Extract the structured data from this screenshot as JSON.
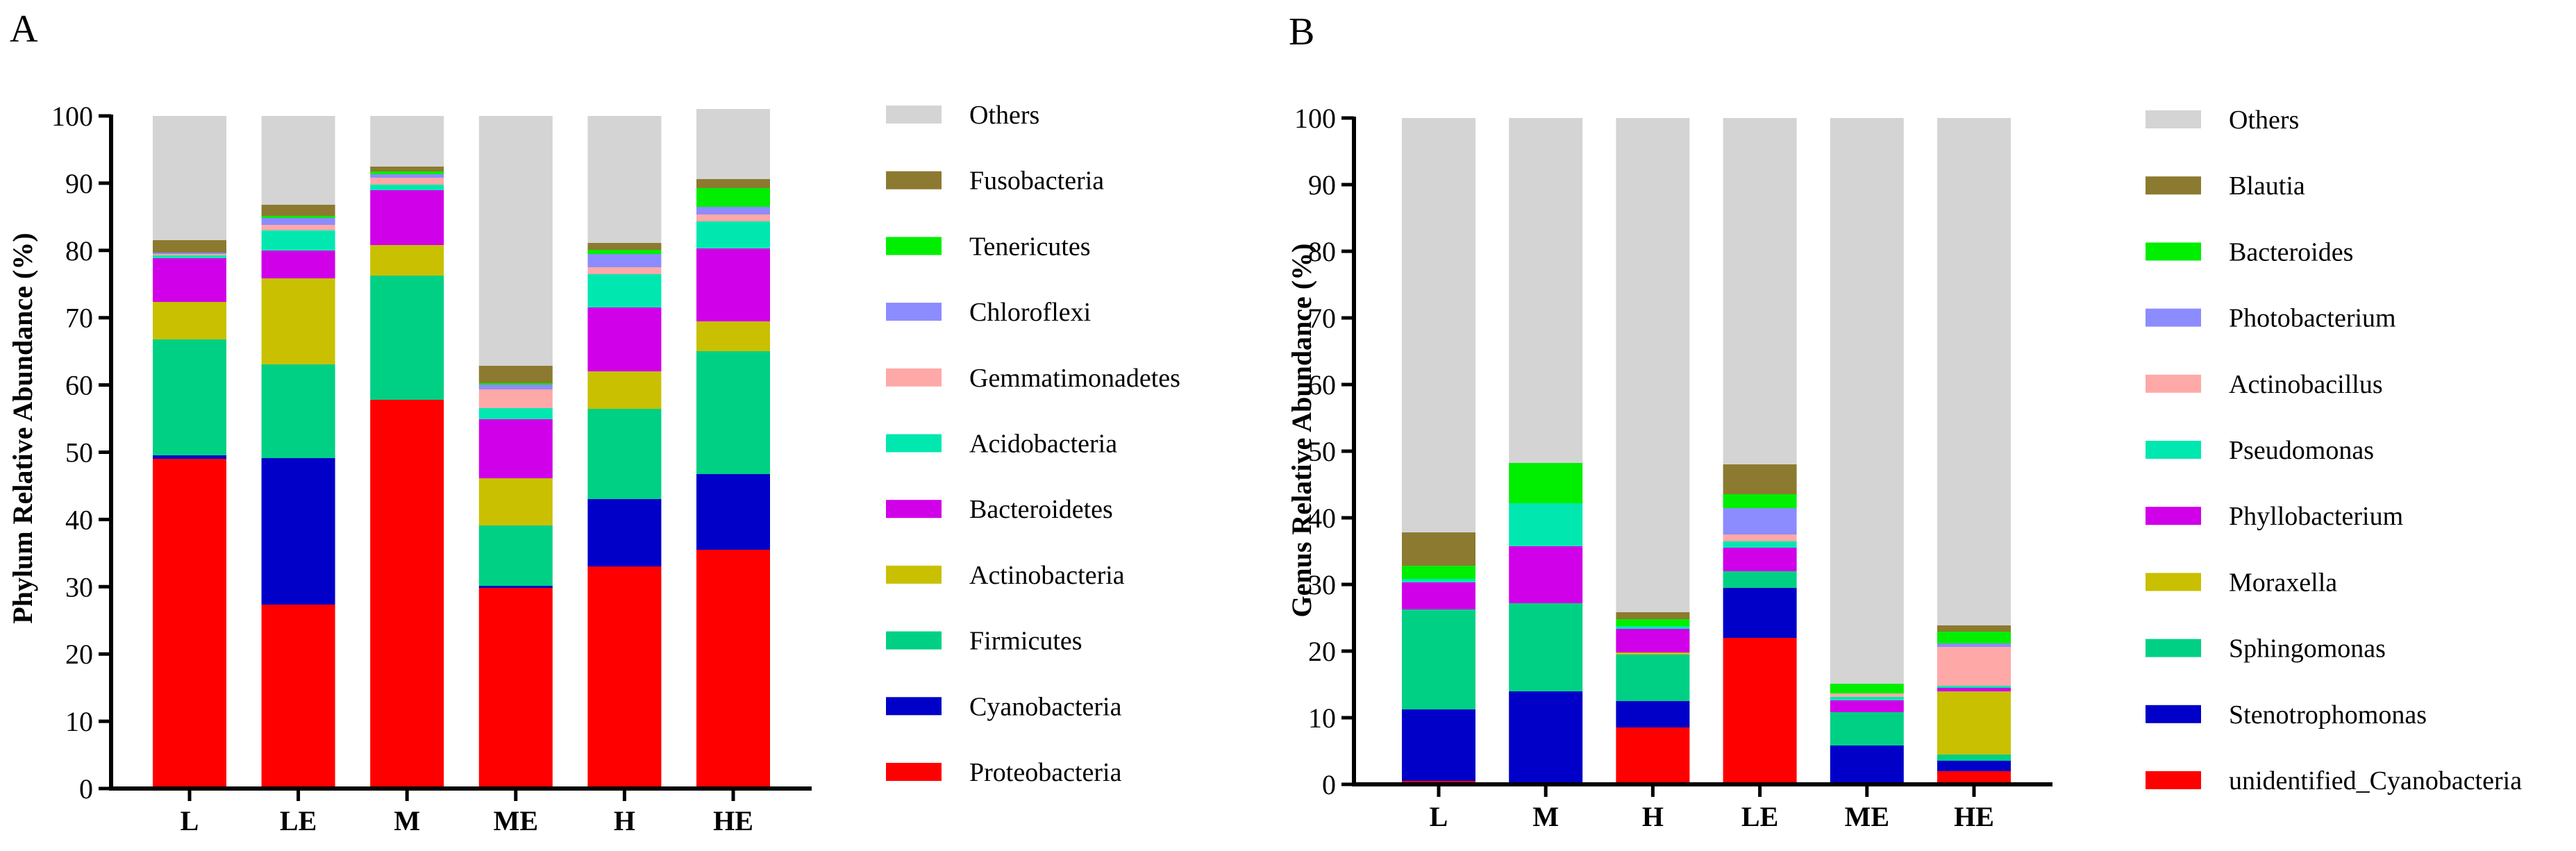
{
  "chart_data": [
    {
      "panel": "A",
      "type": "bar",
      "stacked": true,
      "title": "",
      "xlabel": "",
      "ylabel": "Phylum Relative Abundance (%)",
      "ylim": [
        0,
        100
      ],
      "yticks": [
        "0",
        "10",
        "20",
        "30",
        "40",
        "50",
        "60",
        "70",
        "80",
        "90",
        "100"
      ],
      "grid": false,
      "legend_position": "right",
      "categories": [
        "L",
        "LE",
        "M",
        "ME",
        "H",
        "HE"
      ],
      "series": [
        {
          "name": "Proteobacteria",
          "color": "#ff0000",
          "values": [
            49,
            27.3,
            57.8,
            29.8,
            33,
            35.5
          ]
        },
        {
          "name": "Cyanobacteria",
          "color": "#0000c8",
          "values": [
            0.5,
            21.8,
            0,
            0.3,
            10,
            11.3
          ]
        },
        {
          "name": "Firmicutes",
          "color": "#00d084",
          "values": [
            17.3,
            14,
            18.5,
            9,
            13.5,
            18.2
          ]
        },
        {
          "name": "Actinobacteria",
          "color": "#c8c000",
          "values": [
            5.5,
            12.7,
            4.5,
            7,
            5.5,
            4.5
          ]
        },
        {
          "name": "Bacteroidetes",
          "color": "#d000e8",
          "values": [
            6.5,
            4.2,
            8.2,
            8.8,
            9.5,
            10.8
          ]
        },
        {
          "name": "Acidobacteria",
          "color": "#00e8b0",
          "values": [
            0.5,
            3,
            0.8,
            1.7,
            5,
            4
          ]
        },
        {
          "name": "Gemmatimonadetes",
          "color": "#ffa8a8",
          "values": [
            0.2,
            0.8,
            1,
            2.7,
            1,
            1
          ]
        },
        {
          "name": "Chloroflexi",
          "color": "#8c8cff",
          "values": [
            0.2,
            1,
            0.5,
            0.8,
            2,
            1.2
          ]
        },
        {
          "name": "Tenericutes",
          "color": "#00ee00",
          "values": [
            0,
            0.3,
            0.4,
            0.2,
            0.6,
            2.8
          ]
        },
        {
          "name": "Fusobacteria",
          "color": "#8c7a30",
          "values": [
            1.8,
            1.7,
            0.8,
            2.5,
            1,
            1.3
          ]
        },
        {
          "name": "Others",
          "color": "#d4d4d4",
          "values": [
            18.5,
            13.2,
            7.5,
            37.2,
            18.9,
            10.4
          ]
        }
      ]
    },
    {
      "panel": "B",
      "type": "bar",
      "stacked": true,
      "title": "",
      "xlabel": "",
      "ylabel": "Genus Relative Abundance (%)",
      "ylim": [
        0,
        100
      ],
      "yticks": [
        "0",
        "10",
        "20",
        "30",
        "40",
        "50",
        "60",
        "70",
        "80",
        "90",
        "100"
      ],
      "grid": false,
      "legend_position": "right",
      "categories": [
        "L",
        "M",
        "H",
        "LE",
        "ME",
        "HE"
      ],
      "series": [
        {
          "name": "unidentified_Cyanobacteria",
          "color": "#ff0000",
          "values": [
            0.5,
            0,
            8.5,
            22,
            0,
            2
          ]
        },
        {
          "name": "Stenotrophomonas",
          "color": "#0000c8",
          "values": [
            10.8,
            14,
            4,
            7.5,
            5.8,
            1.5
          ]
        },
        {
          "name": "Sphingomonas",
          "color": "#00d084",
          "values": [
            15,
            13.2,
            7,
            2.5,
            5,
            1
          ]
        },
        {
          "name": "Moraxella",
          "color": "#c8c000",
          "values": [
            0,
            0,
            0.3,
            0,
            0,
            9.5
          ]
        },
        {
          "name": "Phyllobacterium",
          "color": "#d000e8",
          "values": [
            4,
            8.5,
            3.5,
            3.5,
            1.8,
            0.5
          ]
        },
        {
          "name": "Pseudomonas",
          "color": "#00e8b0",
          "values": [
            0.5,
            6.5,
            0.5,
            1,
            0.5,
            0.3
          ]
        },
        {
          "name": "Actinobacillus",
          "color": "#ffa8a8",
          "values": [
            0,
            0,
            0,
            1,
            0.5,
            5.8
          ]
        },
        {
          "name": "Photobacterium",
          "color": "#8c8cff",
          "values": [
            0,
            0,
            0,
            4,
            0,
            0.5
          ]
        },
        {
          "name": "Bacteroides",
          "color": "#00ee00",
          "values": [
            2,
            6,
            1,
            2,
            1.5,
            1.8
          ]
        },
        {
          "name": "Blautia",
          "color": "#8c7a30",
          "values": [
            5,
            0,
            1,
            4.5,
            0,
            1
          ]
        },
        {
          "name": "Others",
          "color": "#d4d4d4",
          "values": [
            62.2,
            51.8,
            74.2,
            52,
            84.9,
            76.1
          ]
        }
      ]
    }
  ]
}
